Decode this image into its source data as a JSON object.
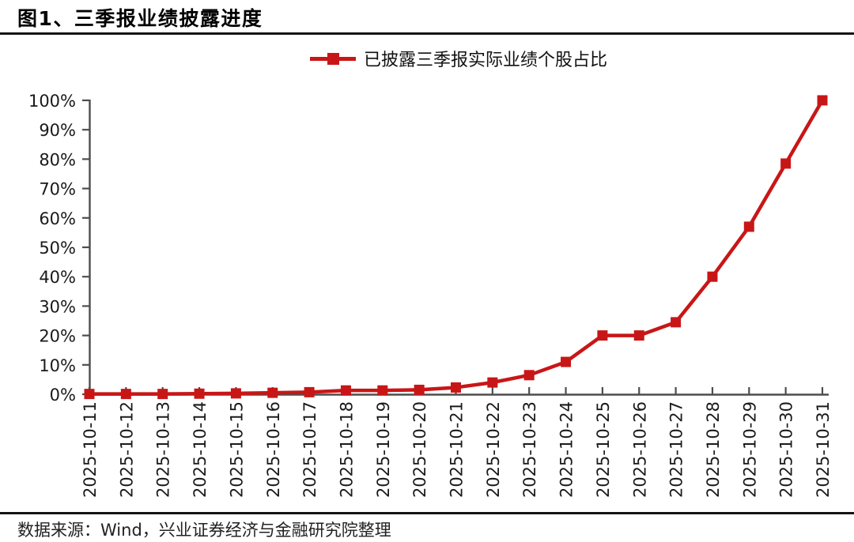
{
  "page": {
    "title": "图1、三季报业绩披露进度",
    "source_note": "数据来源：Wind，兴业证券经济与金融研究院整理"
  },
  "legend": {
    "label": "已披露三季报实际业绩个股占比"
  },
  "colors": {
    "series_red": "#C81617",
    "axis": "#4d4d4d",
    "divider": "#141414",
    "tick_text": "#1a1a1a"
  },
  "chart_data": {
    "type": "line",
    "title": "图1、三季报业绩披露进度",
    "legend_position": "top-center",
    "grid": false,
    "xlabel": "",
    "ylabel": "",
    "ylim": [
      0,
      100
    ],
    "yticks": [
      0,
      10,
      20,
      30,
      40,
      50,
      60,
      70,
      80,
      90,
      100
    ],
    "ytick_suffix": "%",
    "x_label_rotation": -90,
    "categories": [
      "2025-10-11",
      "2025-10-12",
      "2025-10-13",
      "2025-10-14",
      "2025-10-15",
      "2025-10-16",
      "2025-10-17",
      "2025-10-18",
      "2025-10-19",
      "2025-10-20",
      "2025-10-21",
      "2025-10-22",
      "2025-10-23",
      "2025-10-24",
      "2025-10-25",
      "2025-10-26",
      "2025-10-27",
      "2025-10-28",
      "2025-10-29",
      "2025-10-30",
      "2025-10-31"
    ],
    "series": [
      {
        "name": "已披露三季报实际业绩个股占比",
        "color": "#C81617",
        "marker": "square",
        "values": [
          0.1,
          0.1,
          0.1,
          0.2,
          0.3,
          0.5,
          0.7,
          1.3,
          1.3,
          1.5,
          2.3,
          4.0,
          6.5,
          11.0,
          20.0,
          20.0,
          24.5,
          40.0,
          57.0,
          78.5,
          100.0
        ]
      }
    ]
  }
}
